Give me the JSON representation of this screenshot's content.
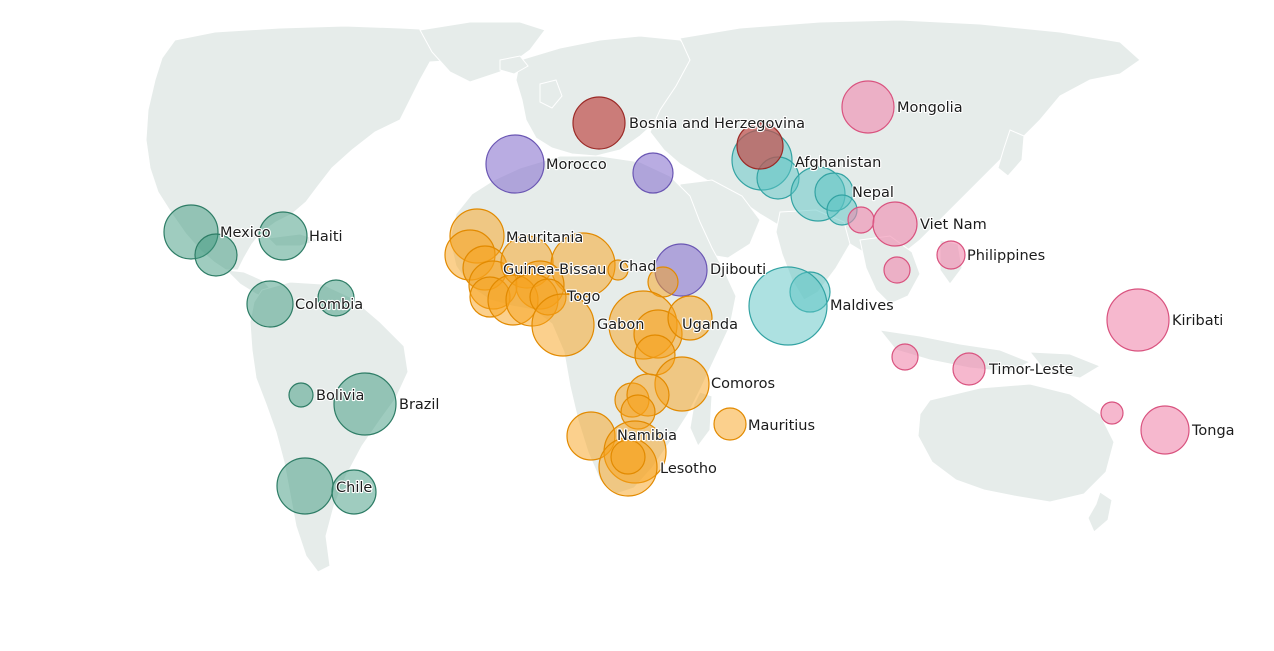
{
  "colors": {
    "land": "#e6ecea",
    "americas": "#3f9a80",
    "americas_stroke": "#2e7d66",
    "africa": "#f7a21b",
    "africa_stroke": "#e28a00",
    "north_africa": "#8b75cf",
    "north_africa_stroke": "#6a56b3",
    "europe": "#c0504d",
    "europe_stroke": "#9b2a27",
    "south_asia": "#5cc3c3",
    "south_asia_stroke": "#33a3a3",
    "east_asia_pacific": "#f088ad",
    "east_asia_pacific_stroke": "#d9537f"
  },
  "labels": [
    {
      "id": "mexico",
      "text": "Mexico"
    },
    {
      "id": "haiti",
      "text": "Haiti"
    },
    {
      "id": "colombia",
      "text": "Colombia"
    },
    {
      "id": "bolivia",
      "text": "Bolivia"
    },
    {
      "id": "brazil",
      "text": "Brazil"
    },
    {
      "id": "chile",
      "text": "Chile"
    },
    {
      "id": "morocco",
      "text": "Morocco"
    },
    {
      "id": "bosnia",
      "text": "Bosnia and Herzegovina"
    },
    {
      "id": "mauritania",
      "text": "Mauritania"
    },
    {
      "id": "guinea_bissau",
      "text": "Guinea-Bissau"
    },
    {
      "id": "chad",
      "text": "Chad"
    },
    {
      "id": "djibouti",
      "text": "Djibouti"
    },
    {
      "id": "togo",
      "text": "Togo"
    },
    {
      "id": "gabon",
      "text": "Gabon"
    },
    {
      "id": "uganda",
      "text": "Uganda"
    },
    {
      "id": "comoros",
      "text": "Comoros"
    },
    {
      "id": "mauritius",
      "text": "Mauritius"
    },
    {
      "id": "namibia",
      "text": "Namibia"
    },
    {
      "id": "lesotho",
      "text": "Lesotho"
    },
    {
      "id": "afghanistan",
      "text": "Afghanistan"
    },
    {
      "id": "nepal",
      "text": "Nepal"
    },
    {
      "id": "maldives",
      "text": "Maldives"
    },
    {
      "id": "mongolia",
      "text": "Mongolia"
    },
    {
      "id": "viet_nam",
      "text": "Viet Nam"
    },
    {
      "id": "philippines",
      "text": "Philippines"
    },
    {
      "id": "kiribati",
      "text": "Kiribati"
    },
    {
      "id": "timor_leste",
      "text": "Timor-Leste"
    },
    {
      "id": "tonga",
      "text": "Tonga"
    }
  ]
}
